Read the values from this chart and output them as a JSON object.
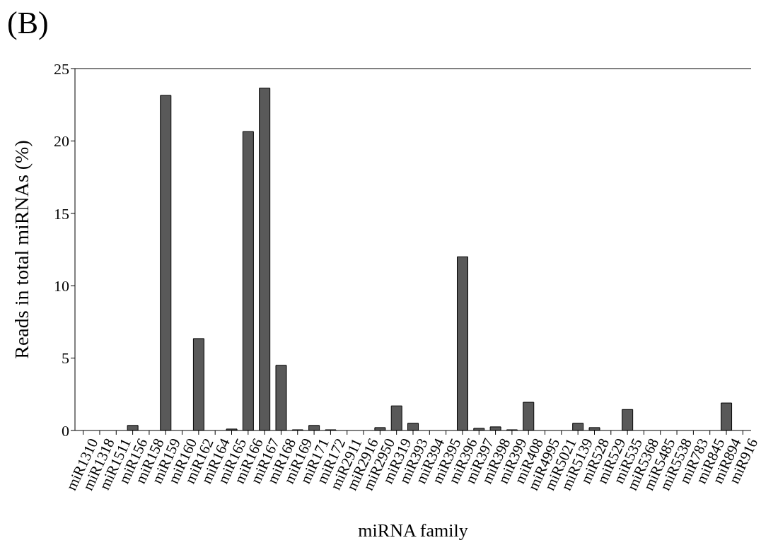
{
  "chart_data": {
    "type": "bar",
    "title": "(B)",
    "xlabel": "miRNA family",
    "ylabel": "Reads in total miRNAs (%)",
    "categories": [
      "miR1310",
      "miR1318",
      "miR1511",
      "miR156",
      "miR158",
      "miR159",
      "miR160",
      "miR162",
      "miR164",
      "miR165",
      "miR166",
      "miR167",
      "miR168",
      "miR169",
      "miR171",
      "miR172",
      "miR2911",
      "miR2916",
      "miR2950",
      "miR319",
      "miR393",
      "miR394",
      "miR395",
      "miR396",
      "miR397",
      "miR398",
      "miR399",
      "miR408",
      "miR4995",
      "miR5021",
      "miR5139",
      "miR528",
      "miR529",
      "miR535",
      "miR5368",
      "miR5485",
      "miR5538",
      "miR783",
      "miR845",
      "miR894",
      "miR916"
    ],
    "values": [
      0,
      0,
      0,
      0.35,
      0,
      23.15,
      0,
      6.35,
      0,
      0.1,
      20.65,
      23.65,
      4.5,
      0.05,
      0.35,
      0.05,
      0,
      0,
      0.2,
      1.7,
      0.5,
      0,
      0,
      12.0,
      0.15,
      0.25,
      0.05,
      1.95,
      0,
      0,
      0.5,
      0.2,
      0,
      1.45,
      0,
      0,
      0,
      0,
      0,
      1.9,
      0
    ],
    "color": "#595959",
    "ylim": [
      0,
      25
    ],
    "yticks": [
      0,
      5,
      10,
      15,
      20,
      25
    ]
  }
}
